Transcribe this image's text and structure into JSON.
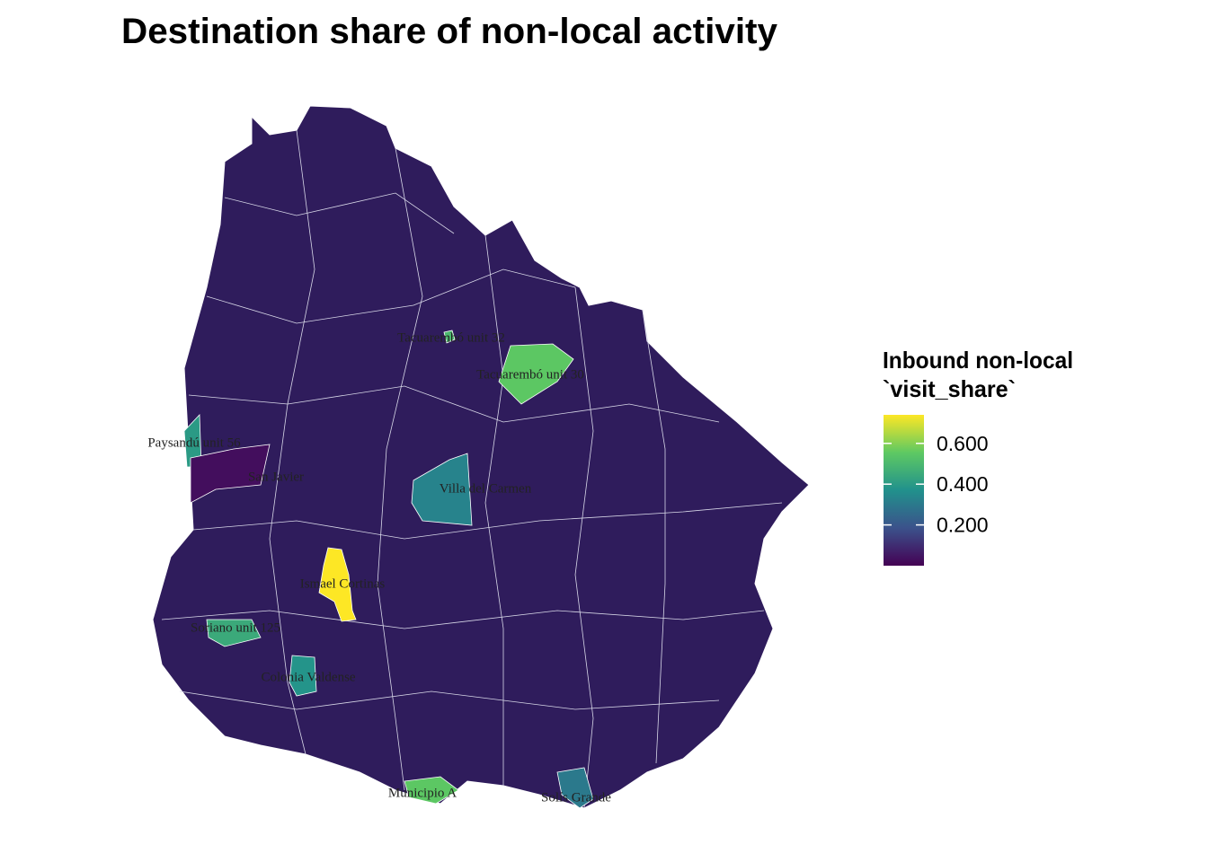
{
  "title": "Destination share of non-local activity",
  "legend": {
    "title": [
      "Inbound non-local",
      "`visit_share`"
    ],
    "range": [
      0,
      0.74
    ],
    "colormap": [
      "#440154",
      "#3b528b",
      "#21918c",
      "#5ec962",
      "#fde725"
    ],
    "ticks": [
      {
        "value": 0.2,
        "label": "0.200"
      },
      {
        "value": 0.4,
        "label": "0.400"
      },
      {
        "value": 0.6,
        "label": "0.600"
      }
    ]
  },
  "regions": [
    {
      "label": "Tacuarembó unit 32",
      "value": 0.5
    },
    {
      "label": "Tacuarembó unit 30",
      "value": 0.55
    },
    {
      "label": "Paysandú unit 56",
      "value": 0.4
    },
    {
      "label": "San Javier",
      "value": 0.03
    },
    {
      "label": "Villa del Carmen",
      "value": 0.33
    },
    {
      "label": "Ismael Cortinas",
      "value": 0.74
    },
    {
      "label": "Soriano unit 125",
      "value": 0.45
    },
    {
      "label": "Colonia Valdense",
      "value": 0.38
    },
    {
      "label": "Municipio A",
      "value": 0.55
    },
    {
      "label": "Solís Grande",
      "value": 0.3
    }
  ]
}
